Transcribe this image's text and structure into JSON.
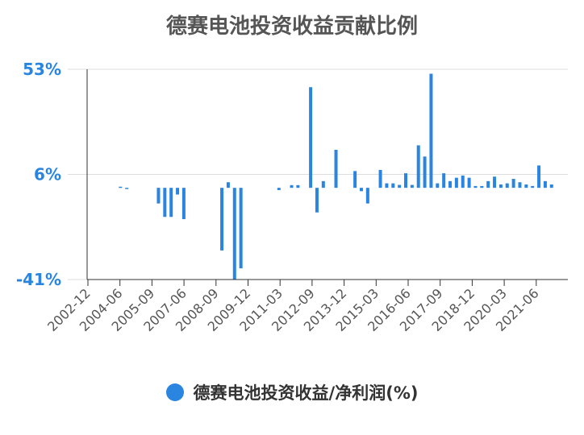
{
  "chart_data": {
    "type": "bar",
    "title": "德赛电池投资收益贡献比例",
    "ylim": [
      -41,
      53
    ],
    "y_ticks": [
      "53%",
      "6%",
      "-41%"
    ],
    "y_tick_values": [
      53,
      6,
      -41
    ],
    "x_tick_labels": [
      "2002-12",
      "2004-06",
      "2005-09",
      "2007-06",
      "2008-09",
      "2009-12",
      "2011-03",
      "2012-09",
      "2013-12",
      "2015-03",
      "2016-06",
      "2017-09",
      "2018-12",
      "2020-03",
      "2021-06"
    ],
    "series": [
      {
        "name": "德赛电池投资收益/净利润(%)",
        "values": [
          null,
          null,
          null,
          null,
          null,
          0.5,
          -0.2,
          null,
          null,
          null,
          null,
          -7,
          -13,
          -13,
          -3,
          -14,
          null,
          null,
          null,
          null,
          null,
          -28,
          2.5,
          -41,
          -36,
          null,
          null,
          null,
          null,
          null,
          -1,
          null,
          1.2,
          1.2,
          null,
          45,
          -11,
          3,
          null,
          17,
          null,
          null,
          7.5,
          -1.5,
          -7,
          null,
          8,
          2,
          2,
          1.3,
          6.5,
          1.3,
          19,
          14,
          51,
          2,
          6.5,
          3,
          4.5,
          5.5,
          4.5,
          0.8,
          0.8,
          3,
          5,
          1.5,
          2,
          4,
          2.5,
          1.5,
          0.8,
          10,
          3,
          1.5,
          null,
          null,
          null,
          null,
          null,
          null,
          null,
          null,
          -0.5,
          null,
          null,
          -8
        ]
      }
    ],
    "legend": "德赛电池投资收益/净利润(%)",
    "legend_position": "bottom",
    "bar_color": "#2a85e0",
    "grid": true
  }
}
